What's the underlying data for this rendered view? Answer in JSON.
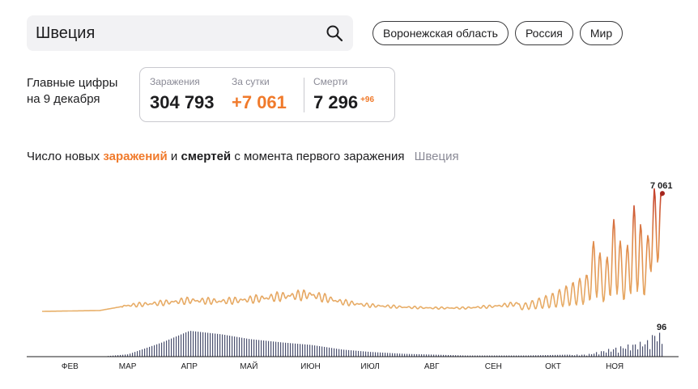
{
  "search": {
    "value": "Швеция"
  },
  "chips": [
    "Воронежская область",
    "Россия",
    "Мир"
  ],
  "summary": {
    "line1": "Главные цифры",
    "line2": "на 9 декабря"
  },
  "stats": {
    "infections_label": "Заражения",
    "infections_value": "304 793",
    "daily_label": "За сутки",
    "daily_value": "+7 061",
    "deaths_label": "Смерти",
    "deaths_value": "7 296",
    "deaths_delta": "+96"
  },
  "chart_title": {
    "prefix": "Число новых",
    "infections": "заражений",
    "conj": "и",
    "deaths": "смертей",
    "suffix": "с момента первого заражения",
    "region": "Швеция"
  },
  "colors": {
    "accent": "#f07a2b",
    "infection_line": "#e8b06a",
    "infection_peak": "#c23a2a",
    "deaths_bar": "#4a4f6e"
  },
  "chart_data": {
    "type": "line",
    "months": [
      "ФЕВ",
      "МАР",
      "АПР",
      "МАЙ",
      "ИЮН",
      "ИЮЛ",
      "АВГ",
      "СЕН",
      "ОКТ",
      "НОЯ"
    ],
    "series": [
      {
        "name": "заражений",
        "x": [
          "02-01",
          "03-01",
          "03-15",
          "04-01",
          "04-15",
          "05-01",
          "05-15",
          "06-01",
          "06-15",
          "07-01",
          "07-15",
          "08-01",
          "08-15",
          "09-01",
          "09-15",
          "10-01",
          "10-15",
          "11-01",
          "11-05",
          "11-10",
          "11-15",
          "11-20",
          "11-25",
          "12-01",
          "12-05",
          "12-09"
        ],
        "values": [
          0,
          50,
          350,
          500,
          650,
          600,
          700,
          900,
          1000,
          550,
          350,
          250,
          200,
          200,
          300,
          500,
          1100,
          2200,
          4600,
          2500,
          5800,
          3000,
          6500,
          4000,
          7400,
          7061
        ]
      },
      {
        "name": "смертей",
        "x": [
          "03-01",
          "03-15",
          "04-01",
          "04-15",
          "05-01",
          "05-15",
          "06-01",
          "06-15",
          "07-01",
          "07-15",
          "08-01",
          "09-01",
          "10-01",
          "11-01",
          "11-15",
          "12-01",
          "12-05",
          "12-09"
        ],
        "values": [
          0,
          10,
          60,
          110,
          95,
          75,
          60,
          50,
          30,
          20,
          12,
          5,
          5,
          10,
          40,
          70,
          110,
          96
        ]
      }
    ],
    "last_values": {
      "infections": "7 061",
      "deaths": "96"
    }
  }
}
